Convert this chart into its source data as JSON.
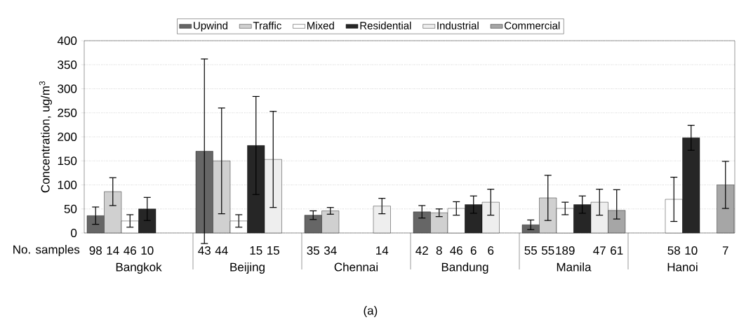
{
  "chart_data": {
    "type": "bar",
    "ylabel": "Concentration, ug/m$^{3}$",
    "categories": [
      "Bangkok",
      "Beijing",
      "Chennai",
      "Bandung",
      "Manila",
      "Hanoi"
    ],
    "ylim": [
      0,
      400
    ],
    "yticks": [
      0,
      50,
      100,
      150,
      200,
      250,
      300,
      350,
      400
    ],
    "grid": "y",
    "legend": "top",
    "annotations": [
      "No. samples",
      "(a)",
      "98",
      "14",
      "46",
      "10",
      "43",
      "44",
      "15",
      "15",
      "35",
      "34",
      "14",
      "42",
      "8",
      "46",
      "6",
      "6",
      "55",
      "55",
      "189",
      "47",
      "61",
      "58",
      "10",
      "7"
    ],
    "series": [
      {
        "name": "Upwind",
        "color": "#666666",
        "values": [
          36,
          170,
          37,
          44,
          17,
          null
        ],
        "errors": [
          18,
          192,
          9,
          13,
          10,
          null
        ]
      },
      {
        "name": "Traffic",
        "color": "#d0d0d0",
        "values": [
          86,
          150,
          46,
          42,
          73,
          null
        ],
        "errors": [
          29,
          110,
          7,
          8,
          47,
          null
        ]
      },
      {
        "name": "Mixed",
        "color": "#ffffff",
        "values": [
          25,
          25,
          null,
          51,
          51,
          70
        ],
        "errors": [
          13,
          13,
          null,
          14,
          13,
          46
        ]
      },
      {
        "name": "Residential",
        "color": "#262626",
        "values": [
          50,
          182,
          null,
          59,
          59,
          198
        ],
        "errors": [
          24,
          102,
          null,
          18,
          18,
          26
        ]
      },
      {
        "name": "Industrial",
        "color": "#eeeeee",
        "values": [
          null,
          153,
          56,
          64,
          64,
          null
        ],
        "errors": [
          null,
          100,
          16,
          27,
          27,
          null
        ]
      },
      {
        "name": "Commercial",
        "color": "#a6a6a6",
        "values": [
          null,
          null,
          null,
          null,
          47,
          100
        ],
        "errors": [
          null,
          null,
          null,
          null,
          [
            29,
            90
          ],
          49
        ]
      }
    ]
  }
}
